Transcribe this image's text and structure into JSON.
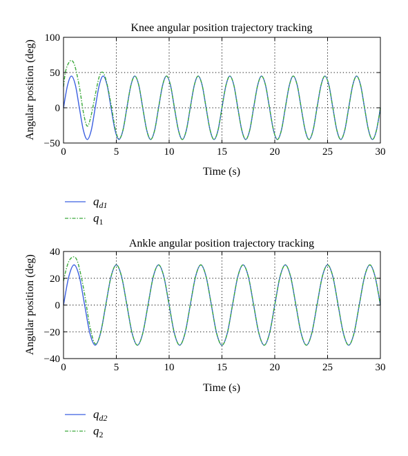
{
  "colors": {
    "desired": "#3b5fe0",
    "actual": "#3aa83a",
    "axis": "#000000",
    "grid": "#000000"
  },
  "chart_data": [
    {
      "type": "line",
      "title": "Knee angular position trajectory tracking",
      "xlabel": "Time (s)",
      "ylabel": "Angular position (deg)",
      "xlim": [
        0,
        30
      ],
      "ylim": [
        -50,
        100
      ],
      "xticks": [
        "0",
        "5",
        "10",
        "15",
        "20",
        "25",
        "30"
      ],
      "yticks": [
        "−50",
        "0",
        "50",
        "100"
      ],
      "grid": "on (dotted)",
      "legend_position": "below plot, left",
      "series": [
        {
          "name": "q_d1",
          "legend": {
            "base": "q",
            "sub": "d1"
          },
          "style": "solid",
          "x": [
            0,
            0.38,
            0.75,
            1.13,
            1.5,
            1.88,
            2.25,
            2.63,
            3.0,
            3.38,
            3.75,
            4.13,
            4.5,
            4.88,
            5.25,
            5.63,
            6.0,
            6.38,
            6.75,
            7.13,
            7.5,
            7.88,
            8.25,
            8.63,
            9.0,
            9.38,
            9.75,
            10.13,
            10.5,
            10.88,
            11.25,
            11.63,
            12.0,
            12.38,
            12.75,
            13.13,
            13.5,
            13.88,
            14.25,
            14.63,
            15.0,
            15.38,
            15.75,
            16.13,
            16.5,
            16.88,
            17.25,
            17.63,
            18.0,
            18.38,
            18.75,
            19.13,
            19.5,
            19.88,
            20.25,
            20.63,
            21.0,
            21.38,
            21.75,
            22.13,
            22.5,
            22.88,
            23.25,
            23.63,
            24.0,
            24.38,
            24.75,
            25.13,
            25.5,
            25.88,
            26.25,
            26.63,
            27.0,
            27.38,
            27.75,
            28.13,
            28.5,
            28.88,
            29.25,
            29.63,
            30.0
          ],
          "y": [
            0,
            31.8,
            45,
            31.8,
            0,
            -31.8,
            -45,
            -31.8,
            0,
            31.8,
            45,
            31.8,
            0,
            -31.8,
            -45,
            -31.8,
            0,
            31.8,
            45,
            31.8,
            0,
            -31.8,
            -45,
            -31.8,
            0,
            31.8,
            45,
            31.8,
            0,
            -31.8,
            -45,
            -31.8,
            0,
            31.8,
            45,
            31.8,
            0,
            -31.8,
            -45,
            -31.8,
            0,
            31.8,
            45,
            31.8,
            0,
            -31.8,
            -45,
            -31.8,
            0,
            31.8,
            45,
            31.8,
            0,
            -31.8,
            -45,
            -31.8,
            0,
            31.8,
            45,
            31.8,
            0,
            -31.8,
            -45,
            -31.8,
            0,
            31.8,
            45,
            31.8,
            0,
            -31.8,
            -45,
            -31.8,
            0,
            31.8,
            45,
            31.8,
            0,
            -31.8,
            -45,
            -31.8,
            0
          ]
        },
        {
          "name": "q_1",
          "legend": {
            "base": "q",
            "sub": "1"
          },
          "style": "dash-dot",
          "x": [
            0,
            0.2,
            0.5,
            0.8,
            1.1,
            1.5,
            1.9,
            2.25,
            2.6,
            3.0,
            3.4,
            3.75,
            4.1,
            4.5,
            4.9,
            5.25,
            5.63,
            6.0,
            6.38,
            6.75,
            7.13,
            7.5,
            7.88,
            8.25,
            8.63,
            9.0,
            9.38,
            9.75,
            10.13,
            10.5,
            10.88,
            11.25,
            11.63,
            12.0,
            12.38,
            12.75,
            13.13,
            13.5,
            13.88,
            14.25,
            14.63,
            15.0,
            15.38,
            15.75,
            16.13,
            16.5,
            16.88,
            17.25,
            17.63,
            18.0,
            18.38,
            18.75,
            19.13,
            19.5,
            19.88,
            20.25,
            20.63,
            21.0,
            21.38,
            21.75,
            22.13,
            22.5,
            22.88,
            23.25,
            23.63,
            24.0,
            24.38,
            24.75,
            25.13,
            25.5,
            25.88,
            26.25,
            26.63,
            27.0,
            27.38,
            27.75,
            28.13,
            28.5,
            28.88,
            29.25,
            29.63,
            30.0
          ],
          "y": [
            30,
            52,
            64,
            67,
            58,
            30,
            -8,
            -26,
            -12,
            18,
            45,
            50,
            35,
            5,
            -30,
            -44,
            -31.8,
            0,
            31.8,
            45,
            31.8,
            0,
            -31.8,
            -45,
            -31.8,
            0,
            31.8,
            45,
            31.8,
            0,
            -31.8,
            -45,
            -31.8,
            0,
            31.8,
            45,
            31.8,
            0,
            -31.8,
            -45,
            -31.8,
            0,
            31.8,
            45,
            31.8,
            0,
            -31.8,
            -45,
            -31.8,
            0,
            31.8,
            45,
            31.8,
            0,
            -31.8,
            -45,
            -31.8,
            0,
            31.8,
            45,
            31.8,
            0,
            -31.8,
            -45,
            -31.8,
            0,
            31.8,
            45,
            31.8,
            0,
            -31.8,
            -45,
            -31.8,
            0,
            31.8,
            45,
            31.8,
            0,
            -31.8,
            -45,
            -31.8,
            0
          ]
        }
      ]
    },
    {
      "type": "line",
      "title": "Ankle angular position trajectory tracking",
      "xlabel": "Time (s)",
      "ylabel": "Angular position (deg)",
      "xlim": [
        0,
        30
      ],
      "ylim": [
        -40,
        40
      ],
      "xticks": [
        "0",
        "5",
        "10",
        "15",
        "20",
        "25",
        "30"
      ],
      "yticks": [
        "−40",
        "−20",
        "0",
        "20",
        "40"
      ],
      "grid": "on (dotted)",
      "legend_position": "below plot, left",
      "series": [
        {
          "name": "q_d2",
          "legend": {
            "base": "q",
            "sub": "d2"
          },
          "style": "solid",
          "x": [
            0,
            0.5,
            1.0,
            1.5,
            2.0,
            2.5,
            3.0,
            3.5,
            4.0,
            4.5,
            5.0,
            5.5,
            6.0,
            6.5,
            7.0,
            7.5,
            8.0,
            8.5,
            9.0,
            9.5,
            10.0,
            10.5,
            11.0,
            11.5,
            12.0,
            12.5,
            13.0,
            13.5,
            14.0,
            14.5,
            15.0,
            15.5,
            16.0,
            16.5,
            17.0,
            17.5,
            18.0,
            18.5,
            19.0,
            19.5,
            20.0,
            20.5,
            21.0,
            21.5,
            22.0,
            22.5,
            23.0,
            23.5,
            24.0,
            24.5,
            25.0,
            25.5,
            26.0,
            26.5,
            27.0,
            27.5,
            28.0,
            28.5,
            29.0,
            29.5,
            30.0
          ],
          "y": [
            0,
            21.2,
            30,
            21.2,
            0,
            -21.2,
            -30,
            -21.2,
            0,
            21.2,
            30,
            21.2,
            0,
            -21.2,
            -30,
            -21.2,
            0,
            21.2,
            30,
            21.2,
            0,
            -21.2,
            -30,
            -21.2,
            0,
            21.2,
            30,
            21.2,
            0,
            -21.2,
            -30,
            -21.2,
            0,
            21.2,
            30,
            21.2,
            0,
            -21.2,
            -30,
            -21.2,
            0,
            21.2,
            30,
            21.2,
            0,
            -21.2,
            -30,
            -21.2,
            0,
            21.2,
            30,
            21.2,
            0,
            -21.2,
            -30,
            -21.2,
            0,
            21.2,
            30,
            21.2,
            0
          ]
        },
        {
          "name": "q_2",
          "legend": {
            "base": "q",
            "sub": "2"
          },
          "style": "dash-dot",
          "x": [
            0,
            0.3,
            0.6,
            1.0,
            1.3,
            1.6,
            2.0,
            2.5,
            3.0,
            3.5,
            4.0,
            4.5,
            5.0,
            5.5,
            6.0,
            6.5,
            7.0,
            7.5,
            8.0,
            8.5,
            9.0,
            9.5,
            10.0,
            10.5,
            11.0,
            11.5,
            12.0,
            12.5,
            13.0,
            13.5,
            14.0,
            14.5,
            15.0,
            15.5,
            16.0,
            16.5,
            17.0,
            17.5,
            18.0,
            18.5,
            19.0,
            19.5,
            20.0,
            20.5,
            21.0,
            21.5,
            22.0,
            22.5,
            23.0,
            23.5,
            24.0,
            24.5,
            25.0,
            25.5,
            26.0,
            26.5,
            27.0,
            27.5,
            28.0,
            28.5,
            29.0,
            29.5,
            30.0
          ],
          "y": [
            18,
            28,
            34,
            36,
            33,
            24,
            8,
            -16,
            -29,
            -21.2,
            0,
            21.2,
            30,
            21.2,
            0,
            -21.2,
            -30,
            -21.2,
            0,
            21.2,
            30,
            21.2,
            0,
            -21.2,
            -30,
            -21.2,
            0,
            21.2,
            30,
            21.2,
            0,
            -21.2,
            -30,
            -21.2,
            0,
            21.2,
            30,
            21.2,
            0,
            -21.2,
            -30,
            -21.2,
            0,
            21.2,
            30,
            21.2,
            0,
            -21.2,
            -30,
            -21.2,
            0,
            21.2,
            30,
            21.2,
            0,
            -21.2,
            -30,
            -21.2,
            0,
            21.2,
            30,
            21.2,
            0
          ]
        }
      ]
    }
  ]
}
